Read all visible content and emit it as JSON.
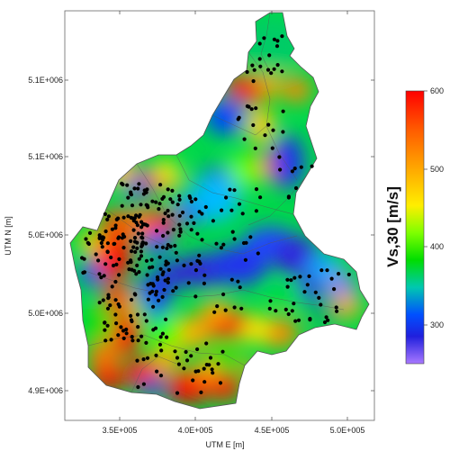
{
  "chart_data": {
    "type": "heatmap",
    "title": "",
    "xlabel": "UTM E [m]",
    "ylabel": "UTM N [m]",
    "x_ticks": [
      "3.5E+005",
      "4.0E+005",
      "4.5E+005",
      "5.0E+005"
    ],
    "y_ticks": [
      "5.1E+006",
      "5.1E+006",
      "5.0E+006",
      "5.0E+006",
      "4.9E+006"
    ],
    "colorbar": {
      "label": "Vs,30 [m/s]",
      "ticks": [
        "600",
        "500",
        "400",
        "300"
      ],
      "range": [
        250,
        600
      ],
      "colors": [
        "#ff0000",
        "#ff7a00",
        "#ffd800",
        "#c8ff00",
        "#00dd00",
        "#00c0a0",
        "#0060ff",
        "#2020e0",
        "#a070ff"
      ]
    },
    "legend_position": "right",
    "grid": false
  }
}
